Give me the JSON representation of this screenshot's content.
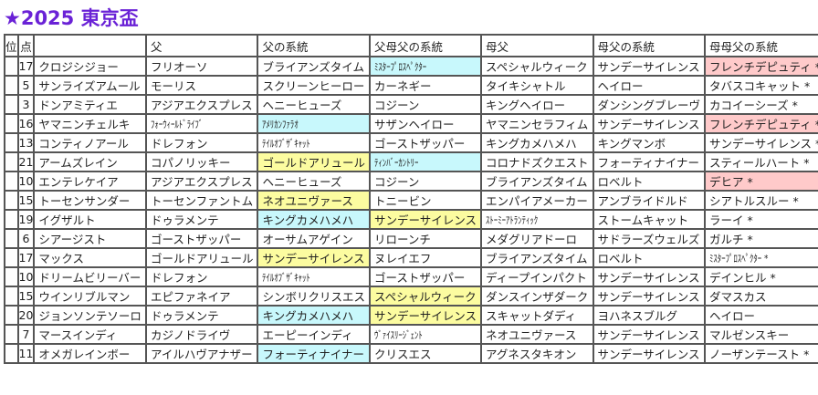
{
  "title": "★2025 東京盃",
  "colors": {
    "cyan": "#c8f8fc",
    "yellow": "#fcfca0",
    "pink": "#ffcaca",
    "title": "#6a22d6"
  },
  "headers": [
    "位",
    "点",
    "",
    "父",
    "父の系統",
    "父母父の系統",
    "母父",
    "母父の系統",
    "母母父の系統"
  ],
  "rows": [
    {
      "cells": [
        "",
        "17",
        "クロジシジョー",
        "フリオーソ",
        "ブライアンズタイム",
        "ﾐｽﾀｰﾌﾟﾛｽﾍﾟｸﾀｰ",
        "スペシャルウィーク",
        "サンデーサイレンス",
        "フレンチデピュティ *"
      ],
      "hl": {
        "5": "cyan",
        "8": "pink"
      }
    },
    {
      "cells": [
        "",
        "5",
        "サンライズアムール",
        "モーリス",
        "スクリーンヒーロー",
        "カーネギー",
        "タイキシャトル",
        "ヘイロー",
        "タバスコキャット *"
      ],
      "hl": {}
    },
    {
      "cells": [
        "",
        "3",
        "ドンアミティエ",
        "アジアエクスプレス",
        "ヘニーヒューズ",
        "コジーン",
        "キングヘイロー",
        "ダンシングブレーヴ",
        "カコイーシーズ *"
      ],
      "hl": {}
    },
    {
      "cells": [
        "",
        "16",
        "ヤマニンチェルキ",
        "ﾌｫｰｳｨｰﾙﾄﾞﾗｲﾌﾞ",
        "ｱﾒﾘｶﾝﾌｧﾗｵ",
        "サザンヘイロー",
        "ヤマニンセラフィム",
        "サンデーサイレンス",
        "フレンチデピュティ *"
      ],
      "hl": {
        "4": "cyan",
        "8": "pink"
      }
    },
    {
      "cells": [
        "",
        "13",
        "コンティノアール",
        "ドレフォン",
        "ﾃｲﾙｵﾌﾞｻﾞｷｬｯﾄ",
        "ゴーストザッパー",
        "キングカメハメハ",
        "キングマンボ",
        "サンデーサイレンス *"
      ],
      "hl": {}
    },
    {
      "cells": [
        "",
        "21",
        "アームズレイン",
        "コパノリッキー",
        "ゴールドアリュール",
        "ﾃｨﾝﾊﾞｰｶﾝﾄﾘｰ",
        "コロナドズクエスト",
        "フォーティナイナー",
        "スティールハート *"
      ],
      "hl": {
        "4": "yellow",
        "5": "cyan"
      }
    },
    {
      "cells": [
        "",
        "10",
        "エンテレケイア",
        "アジアエクスプレス",
        "ヘニーヒューズ",
        "コジーン",
        "ブライアンズタイム",
        "ロベルト",
        "デヒア *"
      ],
      "hl": {
        "8": "pink"
      }
    },
    {
      "cells": [
        "",
        "15",
        "トーセンサンダー",
        "トーセンファントム",
        "ネオユニヴァース",
        "トニービン",
        "エンパイアメーカー",
        "アンブライドルド",
        "シアトルスルー *"
      ],
      "hl": {
        "4": "yellow"
      }
    },
    {
      "cells": [
        "",
        "19",
        "イグザルト",
        "ドゥラメンテ",
        "キングカメハメハ",
        "サンデーサイレンス",
        "ｽﾄｰﾐｰｱﾄﾗﾝﾃｨｯｸ",
        "ストームキャット",
        "ラーイ *"
      ],
      "hl": {
        "4": "cyan",
        "5": "yellow"
      }
    },
    {
      "cells": [
        "",
        "6",
        "シアージスト",
        "ゴーストザッパー",
        "オーサムアゲイン",
        "リローンチ",
        "メダグリアドーロ",
        "サドラーズウェルズ",
        "ガルチ *"
      ],
      "hl": {}
    },
    {
      "cells": [
        "",
        "17",
        "マックス",
        "ゴールドアリュール",
        "サンデーサイレンス",
        "ヌレイエフ",
        "ブライアンズタイム",
        "ロベルト",
        "ﾐｽﾀｰﾌﾟﾛｽﾍﾟｸﾀｰ *"
      ],
      "hl": {
        "4": "yellow"
      }
    },
    {
      "cells": [
        "",
        "10",
        "ドリームビリーバー",
        "ドレフォン",
        "ﾃｲﾙｵﾌﾞｻﾞｷｬｯﾄ",
        "ゴーストザッパー",
        "ディープインパクト",
        "サンデーサイレンス",
        "デインヒル *"
      ],
      "hl": {}
    },
    {
      "cells": [
        "",
        "15",
        "ウインリブルマン",
        "エピファネイア",
        "シンボリクリスエス",
        "スペシャルウィーク",
        "ダンスインザダーク",
        "サンデーサイレンス",
        "ダマスカス"
      ],
      "hl": {
        "5": "yellow"
      }
    },
    {
      "cells": [
        "",
        "20",
        "ジョンソンテソーロ",
        "ドゥラメンテ",
        "キングカメハメハ",
        "サンデーサイレンス",
        "スキャットダディ",
        "ヨハネスブルグ",
        "ヘイロー"
      ],
      "hl": {
        "4": "cyan",
        "5": "yellow"
      }
    },
    {
      "cells": [
        "",
        "7",
        "マースインディ",
        "カジノドライヴ",
        "エーピーインディ",
        "ｳﾞｧｲｽﾘｰｼﾞｪﾝﾄ",
        "ネオユニヴァース",
        "サンデーサイレンス",
        "マルゼンスキー"
      ],
      "hl": {}
    },
    {
      "cells": [
        "",
        "11",
        "オメガレインボー",
        "アイルハヴアナザー",
        "フォーティナイナー",
        "クリスエス",
        "アグネスタキオン",
        "サンデーサイレンス",
        "ノーザンテースト *"
      ],
      "hl": {
        "4": "cyan"
      }
    }
  ]
}
